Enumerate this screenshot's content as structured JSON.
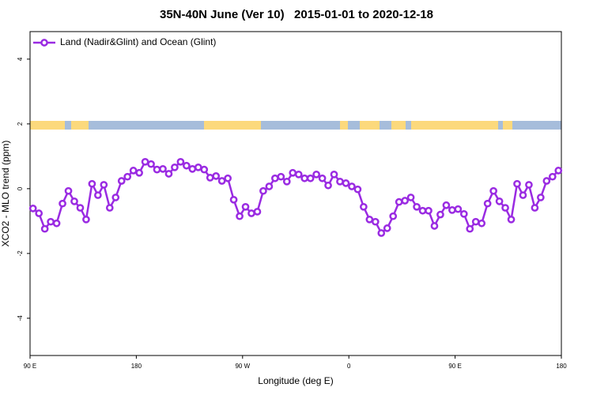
{
  "chart_data": {
    "type": "line",
    "title": "35N-40N June (Ver 10)   2015-01-01 to 2020-12-18",
    "xlabel": "Longitude (deg E)",
    "ylabel": "XCO2 - MLO trend (ppm)",
    "xlim": [
      90,
      540
    ],
    "xticks": [
      {
        "value": 90,
        "label": "90 E"
      },
      180,
      {
        "value": 270,
        "label": "90 W"
      },
      {
        "value": 360,
        "label": "0"
      },
      {
        "value": 450,
        "label": "90 E"
      },
      {
        "value": 540,
        "label": "180"
      }
    ],
    "ylim": [
      -5.15,
      4.85
    ],
    "yticks": [
      4,
      2,
      0,
      -2,
      -4
    ],
    "legend": "upper left",
    "x": [
      92.5,
      97.5,
      102.5,
      107.5,
      112.5,
      117.5,
      122.5,
      127.5,
      132.5,
      137.5,
      142.5,
      147.5,
      152.5,
      157.5,
      162.5,
      167.5,
      172.5,
      177.5,
      182.5,
      187.5,
      192.5,
      197.5,
      202.5,
      207.5,
      212.5,
      217.5,
      222.5,
      227.5,
      232.5,
      237.5,
      242.5,
      247.5,
      252.5,
      257.5,
      262.5,
      267.5,
      272.5,
      277.5,
      282.5,
      287.5,
      292.5,
      297.5,
      302.5,
      307.5,
      312.5,
      317.5,
      322.5,
      327.5,
      332.5,
      337.5,
      342.5,
      347.5,
      352.5,
      357.5,
      362.5,
      367.5,
      372.5,
      377.5,
      382.5,
      387.5,
      392.5,
      397.5,
      402.5,
      407.5,
      412.5,
      417.5,
      422.5,
      427.5,
      432.5,
      437.5,
      442.5,
      447.5,
      452.5,
      457.5,
      462.5,
      467.5,
      472.5,
      477.5,
      482.5,
      487.5,
      492.5,
      497.5,
      502.5,
      507.5,
      512.5,
      517.5,
      522.5,
      527.5,
      532.5,
      537.5
    ],
    "series": [
      {
        "name": "Land (Nadir&Glint) and Ocean (Glint)",
        "color": "#9a2be2",
        "values": [
          -0.61,
          -0.76,
          -1.24,
          -1.02,
          -1.07,
          -0.46,
          -0.07,
          -0.39,
          -0.59,
          -0.95,
          0.15,
          -0.2,
          0.12,
          -0.59,
          -0.27,
          0.24,
          0.37,
          0.56,
          0.49,
          0.83,
          0.76,
          0.59,
          0.61,
          0.46,
          0.66,
          0.83,
          0.71,
          0.61,
          0.66,
          0.59,
          0.34,
          0.39,
          0.24,
          0.32,
          -0.34,
          -0.85,
          -0.56,
          -0.76,
          -0.71,
          -0.07,
          0.07,
          0.32,
          0.37,
          0.22,
          0.49,
          0.44,
          0.32,
          0.32,
          0.44,
          0.32,
          0.1,
          0.44,
          0.22,
          0.17,
          0.07,
          -0.02,
          -0.56,
          -0.95,
          -1.02,
          -1.37,
          -1.22,
          -0.85,
          -0.41,
          -0.37,
          -0.27,
          -0.56,
          -0.68,
          -0.68,
          -1.15,
          -0.8,
          -0.51,
          -0.66,
          -0.63,
          -0.78,
          -1.24,
          -1.02,
          -1.07,
          -0.46,
          -0.07,
          -0.39,
          -0.59,
          -0.95,
          0.15,
          -0.2,
          0.12,
          -0.59,
          -0.27,
          0.24,
          0.37,
          0.56
        ]
      }
    ]
  }
}
